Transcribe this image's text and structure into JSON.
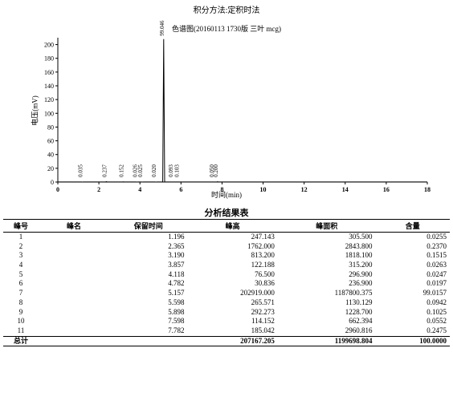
{
  "header_method": "积分方法:定积时法",
  "chart": {
    "type": "chromatogram",
    "title": "色谱图(20160113 1730版 三叶 mcg)",
    "xlabel": "时间(min)",
    "ylabel": "电压(mV)",
    "xlim": [
      0,
      18
    ],
    "ylim": [
      0,
      210
    ],
    "xtick_step": 2,
    "ytick_step": 20,
    "axis_color": "#000000",
    "background_color": "#ffffff",
    "tick_font_size": 8,
    "label_font_size": 9,
    "peaks": [
      {
        "rt": 1.196,
        "height": 0.035,
        "label": "0.035"
      },
      {
        "rt": 2.365,
        "height": 0.237,
        "label": "0.237"
      },
      {
        "rt": 3.19,
        "height": 0.152,
        "label": "0.152"
      },
      {
        "rt": 3.857,
        "height": 0.026,
        "label": "0.026"
      },
      {
        "rt": 4.118,
        "height": 0.025,
        "label": "0.025"
      },
      {
        "rt": 4.782,
        "height": 0.02,
        "label": "0.020"
      },
      {
        "rt": 5.157,
        "height": 99.046,
        "label": "99.046"
      },
      {
        "rt": 5.598,
        "height": 0.093,
        "label": "0.093"
      },
      {
        "rt": 5.898,
        "height": 0.103,
        "label": "0.103"
      },
      {
        "rt": 7.598,
        "height": 0.05,
        "label": "0.050"
      },
      {
        "rt": 7.782,
        "height": 0.2,
        "label": "0.200"
      }
    ]
  },
  "results_title": "分析结果表",
  "columns": [
    "峰号",
    "峰名",
    "保留时间",
    "峰高",
    "峰面积",
    "含量"
  ],
  "rows": [
    [
      "1",
      "",
      "1.196",
      "247.143",
      "305.500",
      "0.0255"
    ],
    [
      "2",
      "",
      "2.365",
      "1762.000",
      "2843.800",
      "0.2370"
    ],
    [
      "3",
      "",
      "3.190",
      "813.200",
      "1818.100",
      "0.1515"
    ],
    [
      "4",
      "",
      "3.857",
      "122.188",
      "315.200",
      "0.0263"
    ],
    [
      "5",
      "",
      "4.118",
      "76.500",
      "296.900",
      "0.0247"
    ],
    [
      "6",
      "",
      "4.782",
      "30.836",
      "236.900",
      "0.0197"
    ],
    [
      "7",
      "",
      "5.157",
      "202919.000",
      "1187800.375",
      "99.0157"
    ],
    [
      "8",
      "",
      "5.598",
      "265.571",
      "1130.129",
      "0.0942"
    ],
    [
      "9",
      "",
      "5.898",
      "292.273",
      "1228.700",
      "0.1025"
    ],
    [
      "10",
      "",
      "7.598",
      "114.152",
      "662.394",
      "0.0552"
    ],
    [
      "11",
      "",
      "7.782",
      "185.042",
      "2960.816",
      "0.2475"
    ]
  ],
  "total": [
    "总计",
    "",
    "",
    "207167.205",
    "1199698.804",
    "100.0000"
  ]
}
